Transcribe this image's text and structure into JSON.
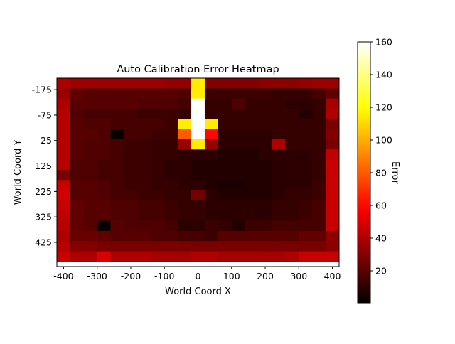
{
  "chart_data": {
    "type": "heatmap",
    "title": "Auto Calibration Error Heatmap",
    "xlabel": "World Coord X",
    "ylabel": "World Coord Y",
    "colorbar_label": "Error",
    "colormap": "hot",
    "vmin": 0,
    "vmax": 160,
    "x_range": [
      -420,
      420
    ],
    "y_range": [
      -220,
      520
    ],
    "x_ticks": [
      -400,
      -300,
      -200,
      -100,
      0,
      100,
      200,
      300,
      400
    ],
    "x_tick_labels": [
      "-400",
      "-300",
      "-200",
      "-100",
      "0",
      "100",
      "200",
      "300",
      "400"
    ],
    "y_ticks": [
      -175,
      -75,
      25,
      125,
      225,
      325,
      425
    ],
    "y_tick_labels": [
      "-175",
      "-75",
      "25",
      "125",
      "225",
      "325",
      "425"
    ],
    "colorbar_ticks": [
      20,
      40,
      60,
      80,
      100,
      120,
      140,
      160
    ],
    "colorbar_tick_labels": [
      "20",
      "40",
      "60",
      "80",
      "100",
      "120",
      "140",
      "160"
    ],
    "x": [
      -400,
      -360,
      -320,
      -280,
      -240,
      -200,
      -160,
      -120,
      -80,
      -40,
      0,
      40,
      80,
      120,
      160,
      200,
      240,
      280,
      320,
      360,
      400
    ],
    "y": [
      -200,
      -160,
      -120,
      -80,
      -40,
      0,
      40,
      80,
      120,
      160,
      200,
      240,
      280,
      320,
      360,
      400,
      440,
      480
    ],
    "z": [
      [
        40,
        36,
        36,
        36,
        36,
        36,
        36,
        36,
        34,
        34,
        115,
        30,
        30,
        30,
        30,
        32,
        32,
        32,
        34,
        36,
        36
      ],
      [
        35,
        22,
        20,
        20,
        20,
        20,
        20,
        20,
        20,
        18,
        115,
        14,
        14,
        14,
        14,
        14,
        12,
        12,
        12,
        16,
        22
      ],
      [
        40,
        20,
        20,
        20,
        20,
        20,
        18,
        18,
        18,
        16,
        160,
        12,
        12,
        18,
        12,
        12,
        12,
        10,
        10,
        12,
        38
      ],
      [
        42,
        18,
        16,
        16,
        16,
        16,
        14,
        14,
        14,
        12,
        160,
        12,
        12,
        12,
        12,
        12,
        12,
        12,
        8,
        12,
        40
      ],
      [
        42,
        20,
        18,
        18,
        16,
        16,
        16,
        16,
        14,
        115,
        160,
        115,
        12,
        12,
        12,
        12,
        12,
        12,
        12,
        12,
        28
      ],
      [
        42,
        20,
        20,
        18,
        2,
        16,
        16,
        14,
        14,
        80,
        160,
        60,
        10,
        10,
        10,
        10,
        12,
        12,
        12,
        12,
        30
      ],
      [
        42,
        20,
        18,
        18,
        16,
        14,
        14,
        12,
        12,
        35,
        115,
        35,
        10,
        10,
        10,
        10,
        40,
        12,
        12,
        12,
        28
      ],
      [
        42,
        20,
        18,
        18,
        16,
        14,
        14,
        12,
        12,
        10,
        10,
        10,
        8,
        8,
        8,
        10,
        10,
        10,
        10,
        12,
        44
      ],
      [
        42,
        18,
        18,
        16,
        16,
        14,
        14,
        12,
        10,
        10,
        8,
        8,
        8,
        8,
        8,
        8,
        10,
        10,
        10,
        12,
        46
      ],
      [
        28,
        18,
        18,
        16,
        16,
        14,
        14,
        12,
        10,
        10,
        8,
        8,
        8,
        8,
        8,
        8,
        10,
        10,
        10,
        12,
        46
      ],
      [
        46,
        20,
        20,
        18,
        16,
        14,
        14,
        12,
        12,
        10,
        10,
        8,
        6,
        6,
        8,
        8,
        10,
        10,
        10,
        14,
        46
      ],
      [
        48,
        20,
        20,
        18,
        16,
        16,
        14,
        14,
        12,
        12,
        26,
        10,
        8,
        8,
        8,
        8,
        10,
        12,
        12,
        14,
        46
      ],
      [
        46,
        22,
        20,
        20,
        18,
        18,
        16,
        16,
        14,
        12,
        12,
        10,
        10,
        10,
        10,
        10,
        12,
        12,
        14,
        16,
        46
      ],
      [
        44,
        22,
        20,
        20,
        18,
        18,
        16,
        16,
        14,
        12,
        12,
        10,
        10,
        10,
        10,
        10,
        12,
        12,
        14,
        16,
        46
      ],
      [
        42,
        22,
        20,
        2,
        20,
        18,
        18,
        18,
        16,
        10,
        10,
        14,
        12,
        8,
        14,
        14,
        16,
        16,
        16,
        16,
        46
      ],
      [
        40,
        24,
        24,
        22,
        20,
        20,
        20,
        18,
        18,
        16,
        16,
        14,
        20,
        20,
        20,
        20,
        20,
        20,
        22,
        22,
        32
      ],
      [
        42,
        30,
        30,
        28,
        28,
        28,
        28,
        28,
        28,
        28,
        28,
        28,
        28,
        28,
        28,
        28,
        28,
        28,
        28,
        28,
        32
      ],
      [
        46,
        40,
        40,
        50,
        40,
        40,
        40,
        38,
        38,
        38,
        40,
        40,
        38,
        38,
        38,
        38,
        38,
        40,
        46,
        46,
        46
      ]
    ]
  }
}
